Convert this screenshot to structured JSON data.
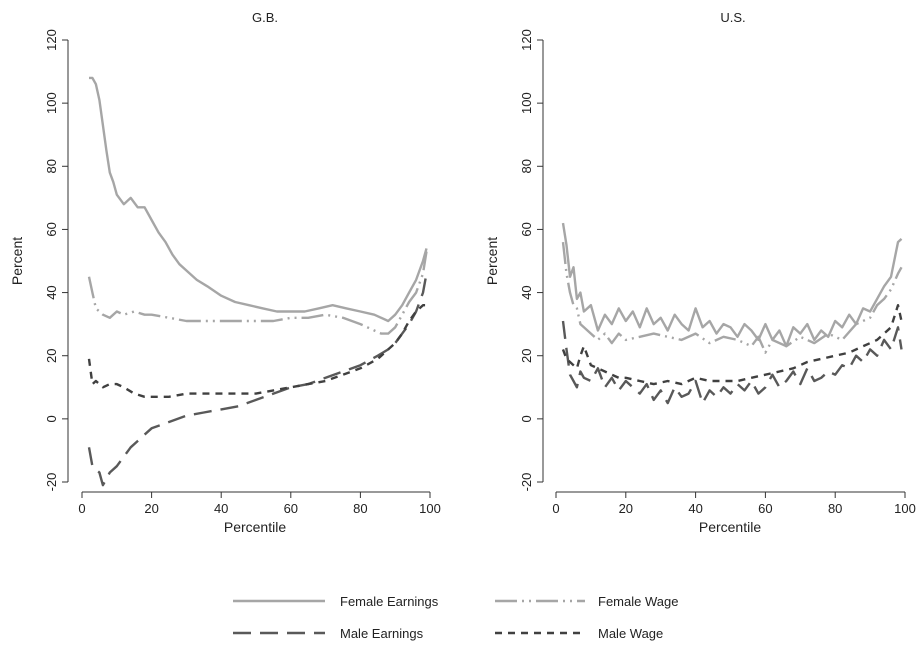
{
  "chart_data": [
    {
      "type": "line",
      "title": "G.B.",
      "xlabel": "Percentile",
      "ylabel": "Percent",
      "xlim": [
        0,
        100
      ],
      "ylim": [
        -20,
        120
      ],
      "xticks": [
        "0",
        "20",
        "40",
        "60",
        "80",
        "100"
      ],
      "yticks": [
        "-20",
        "0",
        "20",
        "40",
        "60",
        "80",
        "100",
        "120"
      ],
      "series": [
        {
          "name": "Female Earnings",
          "color": "#a6a6a6",
          "dash": "solid",
          "x": [
            2,
            3,
            4,
            5,
            6,
            7,
            8,
            9,
            10,
            12,
            14,
            16,
            18,
            20,
            22,
            24,
            26,
            28,
            30,
            33,
            36,
            40,
            44,
            48,
            52,
            56,
            60,
            64,
            68,
            72,
            76,
            80,
            84,
            88,
            90,
            92,
            94,
            96,
            98,
            99
          ],
          "y": [
            108,
            108,
            106,
            101,
            93,
            85,
            78,
            75,
            71,
            68,
            70,
            67,
            67,
            63,
            59,
            56,
            52,
            49,
            47,
            44,
            42,
            39,
            37,
            36,
            35,
            34,
            34,
            34,
            35,
            36,
            35,
            34,
            33,
            31,
            33,
            36,
            40,
            44,
            50,
            54
          ]
        },
        {
          "name": "Female Wage",
          "color": "#a6a6a6",
          "dash": "longdot",
          "x": [
            2,
            3,
            4,
            5,
            6,
            8,
            10,
            12,
            15,
            18,
            20,
            25,
            30,
            35,
            40,
            45,
            50,
            55,
            60,
            65,
            70,
            75,
            80,
            84,
            86,
            88,
            90,
            92,
            94,
            96,
            98,
            99
          ],
          "y": [
            45,
            40,
            35,
            34,
            33,
            32,
            34,
            33,
            34,
            33,
            33,
            32,
            31,
            31,
            31,
            31,
            31,
            31,
            32,
            32,
            33,
            32,
            30,
            28,
            27,
            27,
            29,
            33,
            37,
            40,
            46,
            53
          ]
        },
        {
          "name": "Male Earnings",
          "color": "#595959",
          "dash": "longdash",
          "x": [
            2,
            3,
            4,
            5,
            6,
            7,
            8,
            10,
            12,
            14,
            16,
            18,
            20,
            25,
            30,
            35,
            40,
            45,
            50,
            55,
            60,
            65,
            70,
            75,
            80,
            85,
            88,
            90,
            92,
            94,
            96,
            98,
            99
          ],
          "y": [
            -9,
            -15,
            -16,
            -17,
            -21,
            -19,
            -17,
            -15,
            -12,
            -9,
            -7,
            -5,
            -3,
            -1,
            1,
            2,
            3,
            4,
            6,
            8,
            10,
            11,
            13,
            15,
            17,
            20,
            22,
            24,
            27,
            30,
            34,
            40,
            46
          ]
        },
        {
          "name": "Male Wage",
          "color": "#404040",
          "dash": "shortdash",
          "x": [
            2,
            3,
            4,
            5,
            6,
            8,
            10,
            12,
            15,
            18,
            20,
            25,
            30,
            35,
            40,
            45,
            50,
            55,
            60,
            65,
            70,
            75,
            80,
            85,
            88,
            90,
            92,
            94,
            96,
            98,
            99
          ],
          "y": [
            19,
            11,
            12,
            11,
            10,
            11,
            11,
            10,
            8,
            7,
            7,
            7,
            8,
            8,
            8,
            8,
            8,
            9,
            10,
            11,
            12,
            14,
            16,
            19,
            22,
            24,
            27,
            31,
            34,
            36,
            36
          ]
        }
      ]
    },
    {
      "type": "line",
      "title": "U.S.",
      "xlabel": "Percentile",
      "ylabel": "Percent",
      "xlim": [
        0,
        100
      ],
      "ylim": [
        -20,
        120
      ],
      "xticks": [
        "0",
        "20",
        "40",
        "60",
        "80",
        "100"
      ],
      "yticks": [
        "-20",
        "0",
        "20",
        "40",
        "60",
        "80",
        "100",
        "120"
      ],
      "series": [
        {
          "name": "Female Earnings",
          "color": "#a6a6a6",
          "dash": "solid",
          "x": [
            2,
            3,
            4,
            5,
            6,
            7,
            8,
            10,
            12,
            14,
            16,
            18,
            20,
            22,
            24,
            26,
            28,
            30,
            32,
            34,
            36,
            38,
            40,
            42,
            44,
            46,
            48,
            50,
            52,
            54,
            56,
            58,
            60,
            62,
            64,
            66,
            68,
            70,
            72,
            74,
            76,
            78,
            80,
            82,
            84,
            86,
            88,
            90,
            92,
            94,
            96,
            98,
            99
          ],
          "y": [
            62,
            55,
            45,
            48,
            38,
            40,
            34,
            36,
            28,
            33,
            30,
            35,
            31,
            34,
            29,
            35,
            30,
            32,
            28,
            33,
            30,
            28,
            35,
            29,
            31,
            27,
            30,
            29,
            26,
            30,
            28,
            25,
            30,
            25,
            28,
            23,
            29,
            27,
            30,
            25,
            28,
            26,
            31,
            29,
            33,
            30,
            35,
            34,
            38,
            42,
            45,
            56,
            57
          ]
        },
        {
          "name": "Female Wage",
          "color": "#a6a6a6",
          "dash": "longdot",
          "x": [
            2,
            3,
            4,
            5,
            6,
            7,
            8,
            10,
            12,
            14,
            16,
            18,
            20,
            24,
            28,
            32,
            36,
            40,
            44,
            48,
            52,
            56,
            58,
            60,
            62,
            66,
            70,
            74,
            78,
            82,
            86,
            90,
            92,
            94,
            96,
            98,
            99
          ],
          "y": [
            56,
            46,
            40,
            36,
            35,
            30,
            29,
            27,
            25,
            27,
            24,
            27,
            25,
            26,
            27,
            26,
            25,
            27,
            24,
            26,
            25,
            23,
            26,
            21,
            25,
            23,
            26,
            24,
            27,
            25,
            30,
            32,
            36,
            38,
            41,
            46,
            48
          ]
        },
        {
          "name": "Male Earnings",
          "color": "#595959",
          "dash": "longdash",
          "x": [
            2,
            3,
            4,
            5,
            6,
            7,
            8,
            10,
            12,
            14,
            16,
            18,
            20,
            22,
            24,
            26,
            28,
            30,
            32,
            34,
            36,
            38,
            40,
            42,
            44,
            46,
            48,
            50,
            52,
            54,
            56,
            58,
            60,
            62,
            64,
            66,
            68,
            70,
            72,
            74,
            76,
            78,
            80,
            82,
            84,
            86,
            88,
            90,
            92,
            94,
            96,
            98,
            99
          ],
          "y": [
            31,
            22,
            14,
            12,
            10,
            15,
            13,
            12,
            16,
            10,
            13,
            9,
            12,
            10,
            8,
            11,
            6,
            9,
            5,
            10,
            7,
            8,
            12,
            5,
            9,
            7,
            10,
            8,
            11,
            9,
            12,
            8,
            10,
            14,
            10,
            12,
            15,
            11,
            16,
            12,
            13,
            15,
            14,
            17,
            16,
            20,
            18,
            22,
            20,
            25,
            22,
            29,
            22
          ]
        },
        {
          "name": "Male Wage",
          "color": "#404040",
          "dash": "shortdash",
          "x": [
            2,
            3,
            4,
            5,
            6,
            7,
            8,
            10,
            12,
            14,
            16,
            18,
            20,
            24,
            28,
            32,
            36,
            40,
            44,
            48,
            52,
            56,
            60,
            64,
            68,
            72,
            76,
            80,
            84,
            88,
            90,
            92,
            94,
            96,
            98,
            99
          ],
          "y": [
            22,
            19,
            18,
            17,
            16,
            20,
            23,
            17,
            16,
            15,
            14,
            13,
            13,
            12,
            11,
            12,
            11,
            13,
            12,
            12,
            12,
            13,
            14,
            15,
            16,
            18,
            19,
            20,
            21,
            23,
            24,
            25,
            27,
            29,
            36,
            31
          ]
        }
      ]
    }
  ]
}
